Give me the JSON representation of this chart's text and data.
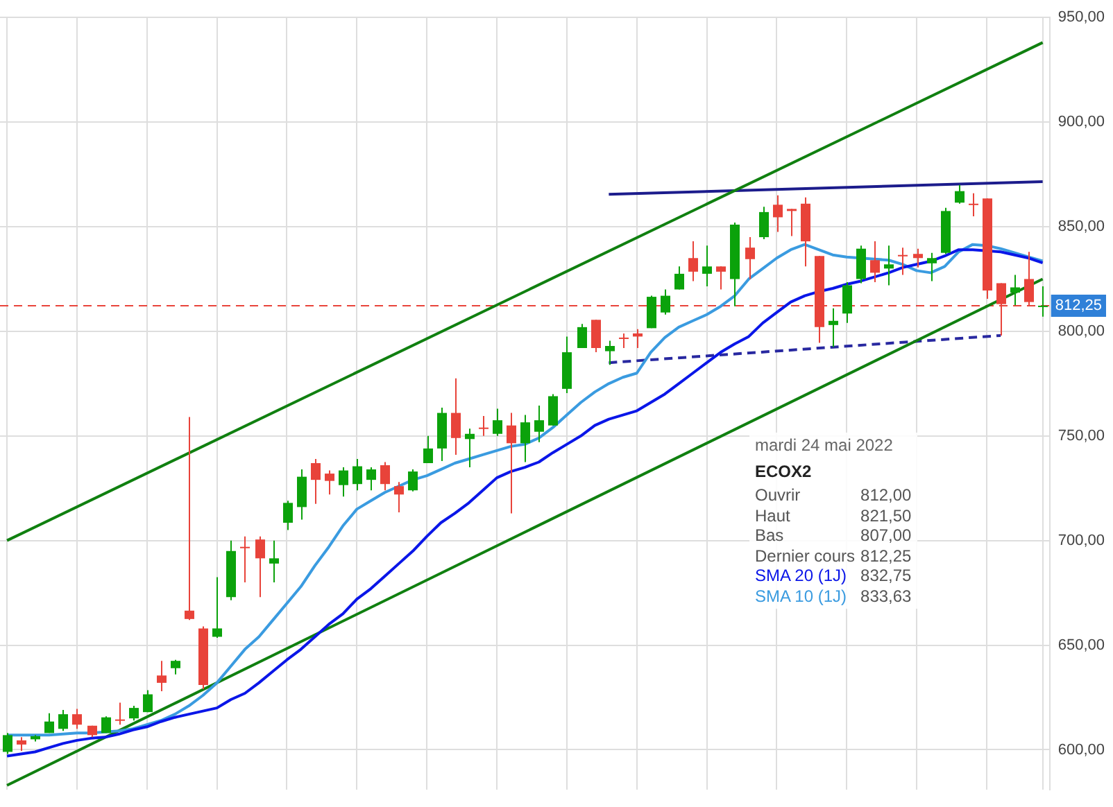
{
  "chart_data": {
    "type": "candlestick",
    "categories": [
      null,
      null,
      null,
      null,
      null,
      null,
      null,
      null,
      null,
      null,
      null,
      null,
      null,
      null,
      null,
      null,
      null,
      null,
      null,
      null,
      null,
      null,
      null,
      null,
      null,
      null,
      null,
      null,
      null,
      null,
      null,
      null,
      null,
      null,
      null,
      null,
      null,
      null,
      null,
      null,
      null,
      null,
      null,
      null,
      null,
      null,
      null,
      null,
      null,
      null,
      null,
      null,
      null,
      null,
      null,
      null,
      null,
      null,
      null,
      null,
      null,
      null,
      null,
      null,
      null,
      null,
      null,
      null,
      null,
      null,
      null,
      null,
      null,
      null,
      null
    ],
    "ohlc": [
      [
        599,
        608,
        598,
        607
      ],
      [
        604.5,
        606,
        599.5,
        602.5
      ],
      [
        605,
        607,
        604,
        606.5
      ],
      [
        608,
        617.5,
        608,
        613.5
      ],
      [
        610,
        619,
        609,
        617
      ],
      [
        617,
        619.5,
        610,
        612
      ],
      [
        611.5,
        611.5,
        606,
        607
      ],
      [
        608,
        616,
        608,
        615.5
      ],
      [
        614.5,
        622.5,
        612,
        614
      ],
      [
        615,
        621,
        614,
        620
      ],
      [
        618,
        628.5,
        618,
        626.5
      ],
      [
        635.5,
        642.5,
        628,
        632
      ],
      [
        639,
        643,
        636,
        642.5
      ],
      [
        666.5,
        759,
        662,
        662.5
      ],
      [
        658,
        659,
        629,
        631
      ],
      [
        654,
        682.5,
        653.5,
        658
      ],
      [
        673,
        700,
        671.5,
        695
      ],
      [
        697,
        702,
        680,
        696.5
      ],
      [
        700.5,
        702,
        673,
        691.5
      ],
      [
        689,
        700,
        680,
        691.5
      ],
      [
        708.5,
        719,
        705,
        718
      ],
      [
        716,
        734,
        710,
        730.5
      ],
      [
        737,
        739,
        717.5,
        729
      ],
      [
        732,
        733.5,
        722,
        728.5
      ],
      [
        726.5,
        735,
        721,
        733.5
      ],
      [
        727,
        739,
        724,
        735.5
      ],
      [
        729,
        735,
        724,
        734
      ],
      [
        736,
        737.5,
        724,
        727
      ],
      [
        726,
        728,
        713.5,
        722
      ],
      [
        724,
        734,
        723.5,
        733
      ],
      [
        737,
        750,
        737,
        744
      ],
      [
        744,
        763.5,
        738,
        761
      ],
      [
        761,
        777.5,
        741,
        749
      ],
      [
        748.5,
        753.5,
        735,
        751
      ],
      [
        754,
        759.5,
        750,
        753.5
      ],
      [
        751,
        763,
        750,
        757.5
      ],
      [
        755,
        761,
        713,
        746.5
      ],
      [
        746.5,
        760,
        737.5,
        756.5
      ],
      [
        752,
        764.5,
        747,
        757.5
      ],
      [
        755,
        770,
        755,
        769
      ],
      [
        772.5,
        797.5,
        770.5,
        790
      ],
      [
        792,
        803.5,
        792,
        802
      ],
      [
        805.5,
        805.5,
        790,
        792
      ],
      [
        790.5,
        795.5,
        784,
        793
      ],
      [
        797,
        799,
        792,
        796.5
      ],
      [
        799,
        801,
        792,
        797.5
      ],
      [
        801.5,
        817,
        801.5,
        816.5
      ],
      [
        809,
        820,
        808,
        817
      ],
      [
        820,
        831,
        820,
        827.5
      ],
      [
        835,
        843,
        824,
        828.5
      ],
      [
        827.5,
        841,
        821.5,
        831
      ],
      [
        831,
        831,
        820,
        828.5
      ],
      [
        825,
        852,
        812,
        851
      ],
      [
        840,
        845,
        825,
        834.5
      ],
      [
        845,
        859.5,
        844,
        857
      ],
      [
        860.5,
        865,
        847.5,
        854.5
      ],
      [
        858.5,
        858.5,
        845.5,
        857.5
      ],
      [
        861,
        864,
        831,
        843
      ],
      [
        836,
        836,
        794.5,
        802
      ],
      [
        803,
        811,
        792.5,
        805
      ],
      [
        808.5,
        823.5,
        804,
        822
      ],
      [
        825,
        841,
        823,
        839.5
      ],
      [
        834,
        843,
        823.5,
        828
      ],
      [
        830,
        841,
        822,
        832
      ],
      [
        836.5,
        840,
        827,
        836
      ],
      [
        837,
        839.5,
        830.5,
        835
      ],
      [
        832.5,
        837.5,
        824,
        835
      ],
      [
        837.5,
        859,
        837,
        857.5
      ],
      [
        861.5,
        870,
        861,
        867
      ],
      [
        861,
        866,
        855,
        860.5
      ],
      [
        863.5,
        863.5,
        815.5,
        819.5
      ],
      [
        823,
        823,
        798,
        813
      ],
      [
        818.5,
        827,
        812.5,
        821
      ],
      [
        825,
        838,
        812,
        814
      ],
      [
        812,
        821.5,
        807,
        812.25
      ]
    ],
    "colors": [
      "#0ba20b",
      "#e8433a",
      "#0ba20b",
      "#0ba20b",
      "#0ba20b",
      "#e8433a",
      "#e8433a",
      "#0ba20b",
      "#e8433a",
      "#0ba20b",
      "#0ba20b",
      "#e8433a",
      "#0ba20b",
      "#e8433a",
      "#e8433a",
      "#0ba20b",
      "#0ba20b",
      "#e8433a",
      "#e8433a",
      "#0ba20b",
      "#0ba20b",
      "#0ba20b",
      "#e8433a",
      "#e8433a",
      "#0ba20b",
      "#0ba20b",
      "#0ba20b",
      "#e8433a",
      "#e8433a",
      "#0ba20b",
      "#0ba20b",
      "#0ba20b",
      "#e8433a",
      "#0ba20b",
      "#e8433a",
      "#0ba20b",
      "#e8433a",
      "#0ba20b",
      "#0ba20b",
      "#0ba20b",
      "#0ba20b",
      "#0ba20b",
      "#e8433a",
      "#0ba20b",
      "#e8433a",
      "#e8433a",
      "#0ba20b",
      "#0ba20b",
      "#0ba20b",
      "#e8433a",
      "#0ba20b",
      "#e8433a",
      "#0ba20b",
      "#e8433a",
      "#0ba20b",
      "#e8433a",
      "#e8433a",
      "#e8433a",
      "#e8433a",
      "#0ba20b",
      "#0ba20b",
      "#0ba20b",
      "#e8433a",
      "#0ba20b",
      "#e8433a",
      "#e8433a",
      "#0ba20b",
      "#0ba20b",
      "#0ba20b",
      "#e8433a",
      "#e8433a",
      "#e8433a",
      "#0ba20b",
      "#e8433a",
      "#0ba20b"
    ],
    "series": [
      {
        "name": "SMA 20 (1J)",
        "type": "line",
        "color": "#0a16e8",
        "values": [
          597,
          598,
          599,
          601,
          603,
          604.5,
          605.5,
          606,
          607.5,
          609.5,
          611,
          613.5,
          615.5,
          617,
          618.5,
          620,
          624,
          627,
          632,
          637.5,
          643,
          648,
          654,
          660,
          665,
          672,
          677,
          683,
          689,
          695,
          702,
          708.5,
          713,
          718,
          724,
          730,
          733,
          735,
          737.5,
          742,
          746,
          750,
          755,
          758,
          760,
          762,
          766,
          770,
          775,
          780,
          785,
          790,
          794,
          797.5,
          804,
          809,
          814,
          817,
          819,
          820.5,
          822.5,
          824,
          826,
          828,
          830.5,
          832,
          833.5,
          836,
          839,
          839,
          838.5,
          838,
          836.5,
          835,
          832.75
        ]
      },
      {
        "name": "SMA 10 (1J)",
        "type": "line",
        "color": "#3a9be0",
        "values": [
          607,
          607,
          607,
          607,
          607.5,
          608,
          608,
          608.5,
          609,
          610,
          612,
          614,
          617,
          621,
          626,
          632,
          640,
          648,
          654,
          662,
          670,
          678,
          688,
          697,
          707,
          715,
          719,
          723,
          726,
          729,
          731,
          734,
          737,
          739,
          741,
          743,
          745,
          746,
          749,
          754,
          760,
          766,
          771,
          775,
          778,
          780,
          790,
          797,
          802,
          805,
          808,
          812,
          817,
          825,
          830,
          835,
          839,
          841.5,
          839,
          836.5,
          835.5,
          835,
          834.5,
          834,
          832,
          829,
          828,
          831,
          838,
          841.5,
          841,
          839.5,
          837.5,
          835.5,
          833.63
        ]
      },
      {
        "type": "line",
        "color": "#108010",
        "values": [
          700,
          null,
          null,
          null,
          null,
          null,
          null,
          null,
          null,
          null,
          null,
          null,
          null,
          null,
          null,
          null,
          null,
          null,
          null,
          null,
          null,
          null,
          null,
          null,
          null,
          null,
          null,
          null,
          null,
          null,
          null,
          null,
          null,
          null,
          null,
          null,
          null,
          null,
          null,
          null,
          null,
          null,
          null,
          null,
          null,
          null,
          null,
          null,
          null,
          null,
          null,
          null,
          null,
          null,
          null,
          null,
          null,
          null,
          null,
          null,
          null,
          null,
          null,
          null,
          null,
          null,
          null,
          null,
          null,
          null,
          null,
          null,
          null,
          null,
          938
        ]
      },
      {
        "type": "line",
        "color": "#108010",
        "values": [
          583,
          null,
          null,
          null,
          null,
          null,
          null,
          null,
          null,
          null,
          null,
          null,
          null,
          null,
          null,
          null,
          null,
          null,
          null,
          null,
          null,
          null,
          null,
          null,
          null,
          null,
          null,
          null,
          null,
          null,
          null,
          null,
          null,
          null,
          null,
          null,
          null,
          null,
          null,
          null,
          null,
          null,
          null,
          null,
          null,
          null,
          null,
          null,
          null,
          null,
          null,
          null,
          null,
          null,
          null,
          null,
          null,
          null,
          null,
          null,
          null,
          null,
          null,
          null,
          null,
          null,
          null,
          null,
          null,
          null,
          null,
          null,
          null,
          null,
          825
        ]
      },
      {
        "type": "line",
        "color": "#1c1c8c",
        "values": [
          null,
          null,
          null,
          null,
          null,
          null,
          null,
          null,
          null,
          null,
          null,
          null,
          null,
          null,
          null,
          null,
          null,
          null,
          null,
          null,
          null,
          null,
          null,
          null,
          null,
          null,
          null,
          null,
          null,
          null,
          null,
          null,
          null,
          null,
          null,
          null,
          null,
          null,
          null,
          null,
          null,
          null,
          null,
          865.5,
          null,
          null,
          null,
          null,
          null,
          null,
          null,
          null,
          null,
          null,
          null,
          null,
          null,
          null,
          null,
          null,
          null,
          null,
          null,
          null,
          null,
          null,
          null,
          null,
          null,
          null,
          null,
          null,
          null,
          null,
          871.5
        ]
      },
      {
        "type": "line",
        "color": "#2828a0",
        "line_style": "dashed",
        "values": [
          null,
          null,
          null,
          null,
          null,
          null,
          null,
          null,
          null,
          null,
          null,
          null,
          null,
          null,
          null,
          null,
          null,
          null,
          null,
          null,
          null,
          null,
          null,
          null,
          null,
          null,
          null,
          null,
          null,
          null,
          null,
          null,
          null,
          null,
          null,
          null,
          null,
          null,
          null,
          null,
          null,
          null,
          null,
          785,
          null,
          null,
          null,
          null,
          null,
          null,
          null,
          null,
          null,
          null,
          null,
          null,
          null,
          null,
          null,
          null,
          null,
          null,
          null,
          null,
          null,
          null,
          null,
          null,
          null,
          null,
          null,
          798,
          null,
          null,
          null
        ]
      }
    ],
    "ylim": [
      581,
      950
    ],
    "yticks": [
      {
        "value": 600,
        "label": "600,00"
      },
      {
        "value": 650,
        "label": "650,00"
      },
      {
        "value": 700,
        "label": "700,00"
      },
      {
        "value": 750,
        "label": "750,00"
      },
      {
        "value": 800,
        "label": "800,00"
      },
      {
        "value": 850,
        "label": "850,00"
      },
      {
        "value": 900,
        "label": "900,00"
      },
      {
        "value": 950,
        "label": "950,00"
      }
    ],
    "ref_lines": [
      {
        "axis": "y",
        "value": 812.25,
        "label": "812,25",
        "color": "#e8433a",
        "line_style": "dashed"
      }
    ],
    "annotations": [
      "mardi 24 mai 2022",
      "ECOX2",
      "Ouvrir 812,00",
      "Haut 821,50",
      "Bas 807,00",
      "Dernier cours 812,25",
      "832,75",
      "833,63"
    ],
    "grid": true,
    "tick_labels": "y"
  }
}
